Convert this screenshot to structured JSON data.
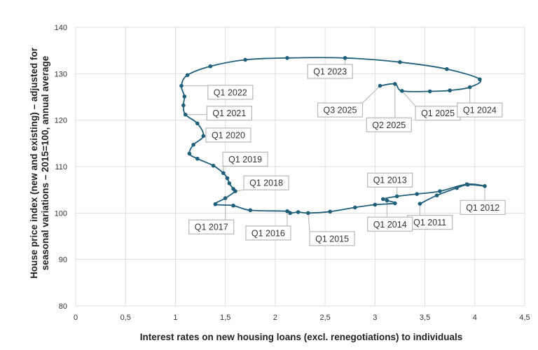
{
  "chart_data": {
    "type": "line",
    "title": "",
    "xlabel": "Interest rates on new housing loans (excl. renegotiations) to individuals",
    "ylabel": "House price index (new and existing) – adjusted for seasonal variations – 2015=100, annual average",
    "ylabel_line1": "House price index (new and existing) – adjusted for",
    "ylabel_line2": "seasonal variations – 2015=100, annual average",
    "xlim": [
      0,
      4.5
    ],
    "ylim": [
      80,
      140
    ],
    "xticks": [
      "0",
      "0,5",
      "1",
      "1,5",
      "2",
      "2,5",
      "3",
      "3,5",
      "4",
      "4,5"
    ],
    "yticks": [
      "80",
      "90",
      "100",
      "110",
      "120",
      "130",
      "140"
    ],
    "grid": true,
    "series_color": "#1f5f7a",
    "points": [
      {
        "x": 3.45,
        "y": 102.0
      },
      {
        "x": 3.62,
        "y": 103.8
      },
      {
        "x": 3.82,
        "y": 105.4
      },
      {
        "x": 3.93,
        "y": 106.1
      },
      {
        "x": 4.1,
        "y": 105.8
      },
      {
        "x": 3.92,
        "y": 106.2
      },
      {
        "x": 3.65,
        "y": 104.7
      },
      {
        "x": 3.42,
        "y": 104.1
      },
      {
        "x": 3.22,
        "y": 103.6
      },
      {
        "x": 3.08,
        "y": 103.0
      },
      {
        "x": 3.12,
        "y": 102.7
      },
      {
        "x": 3.2,
        "y": 102.1
      },
      {
        "x": 3.0,
        "y": 101.8
      },
      {
        "x": 2.8,
        "y": 101.2
      },
      {
        "x": 2.55,
        "y": 100.3
      },
      {
        "x": 2.33,
        "y": 100.0
      },
      {
        "x": 2.23,
        "y": 100.2
      },
      {
        "x": 2.15,
        "y": 100.0
      },
      {
        "x": 2.12,
        "y": 100.4
      },
      {
        "x": 1.75,
        "y": 100.6
      },
      {
        "x": 1.58,
        "y": 101.6
      },
      {
        "x": 1.4,
        "y": 101.9
      },
      {
        "x": 1.5,
        "y": 103.2
      },
      {
        "x": 1.6,
        "y": 104.7
      },
      {
        "x": 1.58,
        "y": 105.2
      },
      {
        "x": 1.54,
        "y": 106.4
      },
      {
        "x": 1.52,
        "y": 107.5
      },
      {
        "x": 1.48,
        "y": 108.6
      },
      {
        "x": 1.38,
        "y": 110.2
      },
      {
        "x": 1.22,
        "y": 111.7
      },
      {
        "x": 1.14,
        "y": 112.8
      },
      {
        "x": 1.18,
        "y": 114.7
      },
      {
        "x": 1.28,
        "y": 116.6
      },
      {
        "x": 1.22,
        "y": 119.3
      },
      {
        "x": 1.1,
        "y": 121.2
      },
      {
        "x": 1.08,
        "y": 123.2
      },
      {
        "x": 1.09,
        "y": 125.1
      },
      {
        "x": 1.06,
        "y": 127.4
      },
      {
        "x": 1.12,
        "y": 129.7
      },
      {
        "x": 1.35,
        "y": 131.6
      },
      {
        "x": 1.7,
        "y": 133.0
      },
      {
        "x": 2.12,
        "y": 133.4
      },
      {
        "x": 2.7,
        "y": 133.4
      },
      {
        "x": 3.25,
        "y": 132.5
      },
      {
        "x": 3.72,
        "y": 131.0
      },
      {
        "x": 4.05,
        "y": 128.8
      },
      {
        "x": 3.95,
        "y": 127.1
      },
      {
        "x": 3.75,
        "y": 126.4
      },
      {
        "x": 3.55,
        "y": 126.2
      },
      {
        "x": 3.27,
        "y": 126.3
      },
      {
        "x": 3.2,
        "y": 127.8
      },
      {
        "x": 3.05,
        "y": 127.4
      }
    ],
    "annotations": [
      {
        "label": "Q1 2011",
        "anchor": [
          3.45,
          102.0
        ],
        "box": [
          3.55,
          98.0
        ]
      },
      {
        "label": "Q1 2012",
        "anchor": [
          4.1,
          105.8
        ],
        "box": [
          4.08,
          101.2
        ]
      },
      {
        "label": "Q1 2013",
        "anchor": [
          3.22,
          103.6
        ],
        "box": [
          3.15,
          107.1
        ]
      },
      {
        "label": "Q1 2014",
        "anchor": [
          3.12,
          102.7
        ],
        "box": [
          3.15,
          97.6
        ]
      },
      {
        "label": "Q1 2015",
        "anchor": [
          2.33,
          100.0
        ],
        "box": [
          2.57,
          94.5
        ]
      },
      {
        "label": "Q1 2016",
        "anchor": [
          2.12,
          100.4
        ],
        "box": [
          1.93,
          95.7
        ]
      },
      {
        "label": "Q1 2017",
        "anchor": [
          1.5,
          103.2
        ],
        "box": [
          1.36,
          97.0
        ]
      },
      {
        "label": "Q1 2018",
        "anchor": [
          1.6,
          104.7
        ],
        "box": [
          1.91,
          106.5
        ]
      },
      {
        "label": "Q1 2019",
        "anchor": [
          1.48,
          108.6
        ],
        "box": [
          1.7,
          111.6
        ]
      },
      {
        "label": "Q1 2020",
        "anchor": [
          1.28,
          116.6
        ],
        "box": [
          1.53,
          116.8
        ]
      },
      {
        "label": "Q1 2021",
        "anchor": [
          1.1,
          121.2
        ],
        "box": [
          1.54,
          121.5
        ]
      },
      {
        "label": "Q1 2022",
        "anchor": [
          1.06,
          127.4
        ],
        "box": [
          1.55,
          126.0
        ]
      },
      {
        "label": "Q1 2023",
        "anchor": [
          2.7,
          133.4
        ],
        "box": [
          2.55,
          130.5
        ]
      },
      {
        "label": "Q3 2025",
        "anchor": [
          3.05,
          127.4
        ],
        "box": [
          2.65,
          122.2
        ]
      },
      {
        "label": "Q2 2025",
        "anchor": [
          3.2,
          127.8
        ],
        "box": [
          3.14,
          119.0
        ]
      },
      {
        "label": "Q1 2025",
        "anchor": [
          3.27,
          126.3
        ],
        "box": [
          3.63,
          121.5
        ]
      },
      {
        "label": "Q1 2024",
        "anchor": [
          3.95,
          127.1
        ],
        "box": [
          4.05,
          122.2
        ]
      }
    ]
  }
}
